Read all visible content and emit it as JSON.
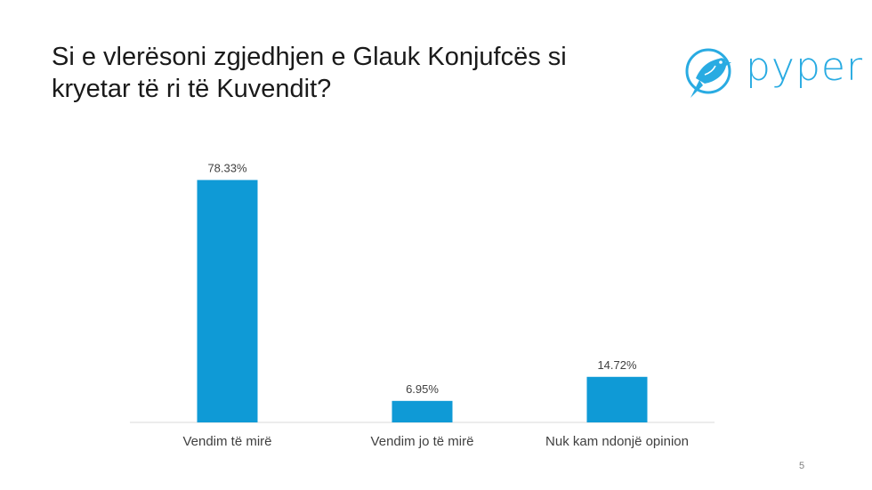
{
  "title": {
    "line1": "Si e vlerësoni zgjedhjen e Glauk Konjufcës si",
    "line2": "kryetar të ri të Kuvendit?"
  },
  "logo": {
    "text": "pyper",
    "icon": "bird-icon",
    "color": "#29abe2"
  },
  "chart_data": {
    "type": "bar",
    "categories": [
      "Vendim të mirë",
      "Vendim jo të mirë",
      "Nuk kam ndonjë opinion"
    ],
    "values": [
      78.33,
      6.95,
      14.72
    ],
    "value_labels": [
      "78.33%",
      "6.95%",
      "14.72%"
    ],
    "title": "",
    "xlabel": "",
    "ylabel": "",
    "ylim": [
      0,
      100
    ],
    "grid": false,
    "legend": "none",
    "bar_color": "#0f9ad6"
  },
  "page_number": "5"
}
